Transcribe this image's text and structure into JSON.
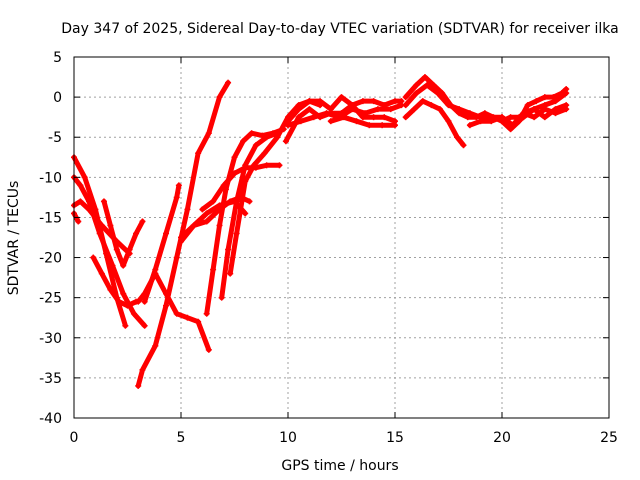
{
  "chart_data": {
    "type": "line",
    "title": "Day 347 of 2025, Sidereal Day-to-day VTEC variation (SDTVAR) for receiver ilka",
    "xlabel": "GPS time / hours",
    "ylabel": "SDTVAR / TECUs",
    "xlim": [
      0,
      25
    ],
    "ylim": [
      -40,
      5
    ],
    "xticks": [
      0,
      5,
      10,
      15,
      20,
      25
    ],
    "yticks": [
      -40,
      -35,
      -30,
      -25,
      -20,
      -15,
      -10,
      -5,
      0,
      5
    ],
    "grid": true,
    "legend": "none",
    "color": "#ff0000",
    "series": [
      {
        "x": [
          0.0,
          0.5,
          1.0,
          1.5,
          2.0,
          2.4
        ],
        "y": [
          -7.5,
          -10.0,
          -14.0,
          -19.5,
          -25.0,
          -28.5
        ]
      },
      {
        "x": [
          0.0,
          0.3,
          0.7,
          1.2,
          1.8,
          2.3,
          2.8,
          3.3
        ],
        "y": [
          -10.0,
          -11.0,
          -13.0,
          -17.0,
          -21.0,
          -24.5,
          -27.0,
          -28.5
        ]
      },
      {
        "x": [
          0.0,
          0.3,
          0.7,
          1.3,
          2.0,
          2.6
        ],
        "y": [
          -13.5,
          -13.0,
          -14.0,
          -16.0,
          -18.0,
          -19.5
        ]
      },
      {
        "x": [
          0.0,
          0.2
        ],
        "y": [
          -14.5,
          -15.5
        ]
      },
      {
        "x": [
          0.9,
          1.3,
          1.7,
          2.1,
          2.5,
          2.9
        ],
        "y": [
          -20.0,
          -22.0,
          -24.0,
          -25.5,
          -26.0,
          -25.5
        ]
      },
      {
        "x": [
          1.4,
          1.7,
          2.0,
          2.3,
          2.6,
          2.9,
          3.2
        ],
        "y": [
          -13.0,
          -16.0,
          -19.0,
          -21.0,
          -19.0,
          -17.0,
          -15.5
        ]
      },
      {
        "x": [
          3.0,
          3.3,
          3.8,
          4.3,
          4.8,
          5.3,
          5.8,
          6.3
        ],
        "y": [
          -25.5,
          -24.5,
          -22.0,
          -24.5,
          -27.0,
          -27.5,
          -28.0,
          -31.5
        ]
      },
      {
        "x": [
          3.0,
          3.2,
          3.8,
          4.3,
          4.8,
          5.3,
          5.8,
          6.3,
          6.8,
          7.2
        ],
        "y": [
          -36.0,
          -34.0,
          -31.0,
          -26.0,
          -20.0,
          -14.0,
          -7.0,
          -4.5,
          0.0,
          1.8
        ]
      },
      {
        "x": [
          3.3,
          3.8,
          4.3,
          4.8,
          4.9
        ],
        "y": [
          -25.5,
          -21.5,
          -17.0,
          -12.5,
          -11.0
        ]
      },
      {
        "x": [
          5.0,
          5.6,
          6.2,
          6.8,
          7.3,
          7.8,
          8.2
        ],
        "y": [
          -18.0,
          -16.0,
          -15.5,
          -14.0,
          -13.0,
          -12.5,
          -13.0
        ]
      },
      {
        "x": [
          5.0,
          5.6,
          6.2,
          6.8,
          7.5,
          8.0
        ],
        "y": [
          -17.5,
          -16.0,
          -14.5,
          -13.5,
          -13.0,
          -14.5
        ]
      },
      {
        "x": [
          6.2,
          6.5,
          6.8,
          7.1,
          7.5,
          7.9,
          8.3,
          8.8,
          9.3,
          9.8
        ],
        "y": [
          -27.0,
          -21.5,
          -16.0,
          -11.5,
          -7.5,
          -5.5,
          -4.5,
          -4.8,
          -4.5,
          -4.0
        ]
      },
      {
        "x": [
          6.9,
          7.2,
          7.6,
          8.0,
          8.5,
          9.0,
          9.5
        ],
        "y": [
          -25.0,
          -19.0,
          -13.0,
          -8.5,
          -6.0,
          -5.0,
          -4.5
        ]
      },
      {
        "x": [
          7.3,
          7.6,
          8.0,
          8.4,
          8.9,
          9.5,
          10.0,
          10.5,
          11.0,
          11.5
        ],
        "y": [
          -22.0,
          -17.0,
          -10.5,
          -8.5,
          -7.0,
          -5.0,
          -2.5,
          -1.0,
          -0.5,
          -1.0
        ]
      },
      {
        "x": [
          6.0,
          6.5,
          7.0,
          7.5,
          8.0,
          8.5,
          9.0,
          9.6
        ],
        "y": [
          -14.0,
          -13.0,
          -11.0,
          -9.5,
          -8.8,
          -8.8,
          -8.5,
          -8.5
        ]
      },
      {
        "x": [
          9.9,
          10.5,
          11.0,
          11.5,
          12.0,
          12.5,
          13.0,
          13.5,
          14.0,
          14.5,
          15.0
        ],
        "y": [
          -5.5,
          -2.5,
          -1.5,
          -2.5,
          -2.0,
          -2.0,
          -1.0,
          -2.5,
          -2.5,
          -2.5,
          -3.0
        ]
      },
      {
        "x": [
          10.0,
          10.5,
          11.0,
          11.5,
          12.0,
          12.5,
          13.0,
          13.5,
          14.0,
          14.5,
          15.0,
          15.3
        ],
        "y": [
          -3.0,
          -1.5,
          -0.5,
          -0.5,
          -1.5,
          0.0,
          -1.0,
          -0.5,
          -0.5,
          -1.0,
          -0.5,
          -0.5
        ]
      },
      {
        "x": [
          10.0,
          10.6,
          11.2,
          11.8,
          12.4,
          13.0,
          13.6,
          14.2,
          14.8,
          15.3
        ],
        "y": [
          -3.5,
          -3.0,
          -2.5,
          -2.0,
          -2.5,
          -1.5,
          -2.0,
          -1.5,
          -1.5,
          -1.0
        ]
      },
      {
        "x": [
          12.0,
          12.6,
          13.2,
          13.8,
          14.4,
          15.0
        ],
        "y": [
          -3.0,
          -2.5,
          -3.0,
          -3.5,
          -3.5,
          -3.5
        ]
      },
      {
        "x": [
          15.5,
          15.9,
          16.3,
          16.7,
          17.1,
          17.5,
          17.9,
          18.2
        ],
        "y": [
          -2.5,
          -1.5,
          -0.5,
          -1.0,
          -1.5,
          -3.0,
          -5.0,
          -6.0
        ]
      },
      {
        "x": [
          15.5,
          16.0,
          16.4,
          16.8,
          17.2,
          17.6,
          18.0,
          18.4,
          18.8,
          19.2,
          19.6,
          20.0,
          20.4,
          20.8,
          21.2
        ],
        "y": [
          0.0,
          1.5,
          2.5,
          1.5,
          0.5,
          -1.0,
          -2.0,
          -2.5,
          -2.5,
          -2.0,
          -2.5,
          -3.0,
          -2.5,
          -2.5,
          -2.0
        ]
      },
      {
        "x": [
          15.5,
          16.0,
          16.5,
          17.0,
          17.5,
          18.0,
          18.5,
          19.0,
          19.5,
          20.0,
          20.5,
          21.0,
          21.5,
          22.0,
          22.5,
          23.0
        ],
        "y": [
          -1.0,
          0.5,
          1.5,
          0.5,
          -1.0,
          -1.5,
          -2.0,
          -2.5,
          -2.5,
          -2.5,
          -3.5,
          -2.0,
          -1.5,
          -1.0,
          -0.5,
          0.5
        ]
      },
      {
        "x": [
          18.5,
          19.0,
          19.5,
          20.0,
          20.5,
          21.0,
          21.5,
          22.0,
          22.5,
          23.0
        ],
        "y": [
          -3.5,
          -3.0,
          -3.0,
          -2.5,
          -3.5,
          -2.5,
          -1.5,
          -2.5,
          -1.5,
          -1.0
        ]
      },
      {
        "x": [
          20.0,
          20.4,
          20.8,
          21.2,
          21.6,
          22.0,
          22.4,
          22.8,
          23.0
        ],
        "y": [
          -3.0,
          -4.0,
          -3.0,
          -1.0,
          -0.5,
          0.0,
          0.0,
          0.5,
          1.0
        ]
      },
      {
        "x": [
          21.0,
          21.5,
          22.0,
          22.5,
          23.0
        ],
        "y": [
          -2.0,
          -2.5,
          -1.5,
          -2.0,
          -1.5
        ]
      }
    ]
  }
}
